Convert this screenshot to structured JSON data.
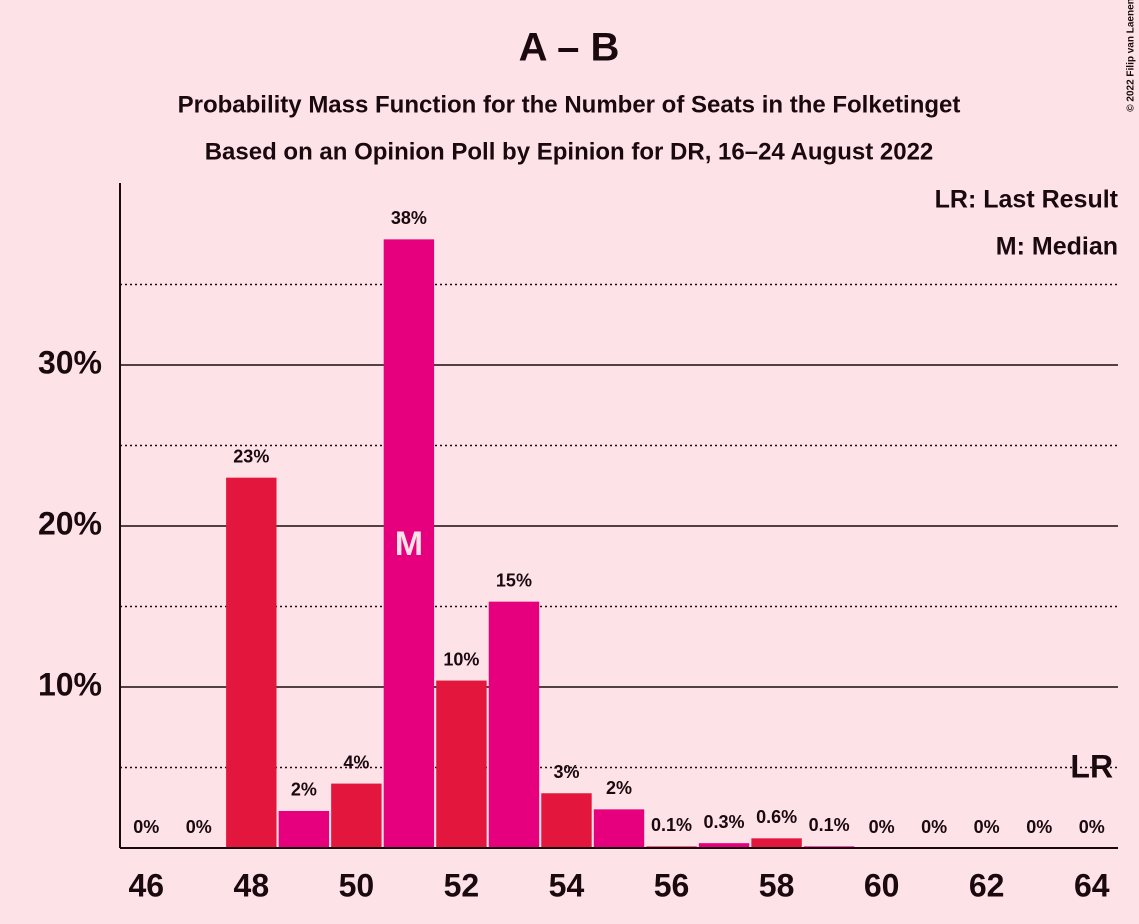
{
  "chart_data": {
    "type": "bar",
    "title": "A – B",
    "subtitle": "Probability Mass Function for the Number of Seats in the Folketinget",
    "subtitle2": "Based on an Opinion Poll by Epinion for DR, 16–24 August 2022",
    "copyright": "© 2022 Filip van Laenen",
    "x": [
      46,
      47,
      48,
      49,
      50,
      51,
      52,
      53,
      54,
      55,
      56,
      57,
      58,
      59,
      60,
      61,
      62,
      63,
      64
    ],
    "values": [
      0,
      0,
      23,
      2.3,
      4,
      37.8,
      10.4,
      15.3,
      3.4,
      2.4,
      0.1,
      0.3,
      0.6,
      0.1,
      0,
      0,
      0,
      0,
      0
    ],
    "value_labels": [
      "0%",
      "0%",
      "23%",
      "2%",
      "4%",
      "38%",
      "10%",
      "15%",
      "3%",
      "2%",
      "0.1%",
      "0.3%",
      "0.6%",
      "0.1%",
      "0%",
      "0%",
      "0%",
      "0%",
      "0%"
    ],
    "colors": [
      "#e3173e",
      "#e6007e",
      "#e3173e",
      "#e6007e",
      "#e3173e",
      "#e6007e",
      "#e3173e",
      "#e6007e",
      "#e3173e",
      "#e6007e",
      "#e3173e",
      "#e6007e",
      "#e3173e",
      "#e6007e",
      "#e3173e",
      "#e6007e",
      "#e3173e",
      "#e6007e",
      "#e3173e"
    ],
    "xlim": [
      45.5,
      64.5
    ],
    "xticks": [
      46,
      48,
      50,
      52,
      54,
      56,
      58,
      60,
      62,
      64
    ],
    "ylim": [
      0,
      41.3
    ],
    "yticks": [
      {
        "value": 10,
        "label": "10%"
      },
      {
        "value": 20,
        "label": "20%"
      },
      {
        "value": 30,
        "label": "30%"
      }
    ],
    "minor_yticks": [
      5,
      15,
      25,
      35
    ],
    "grid": true,
    "median": 51,
    "median_label": "M",
    "last_result": 64,
    "last_result_label": "LR",
    "legend": [
      "LR: Last Result",
      "M: Median"
    ]
  }
}
